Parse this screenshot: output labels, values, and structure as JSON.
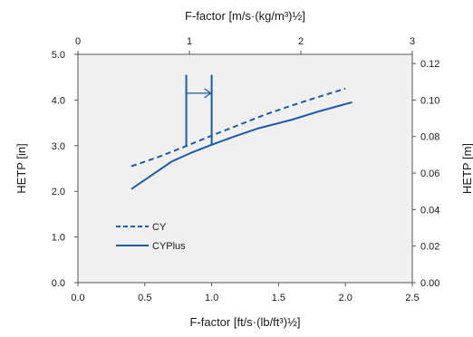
{
  "chart_data": {
    "type": "line",
    "title": "",
    "xlabel": "F-factor [ft/s·(lb/ft³)½]",
    "ylabel": "HETP [in]",
    "x2label": "F-factor [m/s·(kg/m³)½]",
    "y2label": "HETP [m]",
    "xlim": [
      0,
      2.5
    ],
    "ylim": [
      0,
      5
    ],
    "x2lim": [
      0,
      3
    ],
    "y2lim": [
      0,
      0.125
    ],
    "x_ticks": [
      "0.0",
      "0.5",
      "1.0",
      "1.5",
      "2.0",
      "2.5"
    ],
    "y_ticks": [
      "0.0",
      "1.0",
      "2.0",
      "3.0",
      "4.0",
      "5.0"
    ],
    "x2_ticks": [
      "0",
      "1",
      "2",
      "3"
    ],
    "y2_ticks": [
      "0.00",
      "0.02",
      "0.04",
      "0.06",
      "0.08",
      "0.10",
      "0.12"
    ],
    "grid": false,
    "background": "#f0f0f0",
    "series": [
      {
        "name": "CY",
        "style": "dashed",
        "color": "#1f5aa8",
        "points": [
          [
            0.4,
            2.55
          ],
          [
            0.6,
            2.75
          ],
          [
            0.8,
            2.98
          ],
          [
            1.0,
            3.22
          ],
          [
            1.2,
            3.45
          ],
          [
            1.4,
            3.68
          ],
          [
            1.6,
            3.88
          ],
          [
            1.8,
            4.07
          ],
          [
            2.0,
            4.25
          ]
        ]
      },
      {
        "name": "CYPlus",
        "style": "solid",
        "color": "#1f5aa8",
        "points": [
          [
            0.4,
            2.05
          ],
          [
            0.55,
            2.35
          ],
          [
            0.7,
            2.65
          ],
          [
            0.85,
            2.85
          ],
          [
            1.0,
            3.02
          ],
          [
            1.15,
            3.18
          ],
          [
            1.35,
            3.38
          ],
          [
            1.6,
            3.57
          ],
          [
            1.8,
            3.75
          ],
          [
            2.05,
            3.95
          ]
        ]
      }
    ],
    "annotation": {
      "type": "shift-arrow",
      "x_from": 0.81,
      "x_to": 1.0,
      "y_bottom": 3.0,
      "y_top": 4.55,
      "arrow_y": 4.15
    },
    "legend": {
      "placement": "lower-left",
      "entries": [
        {
          "label": "CY",
          "style": "dashed"
        },
        {
          "label": "CYPlus",
          "style": "solid"
        }
      ]
    }
  }
}
